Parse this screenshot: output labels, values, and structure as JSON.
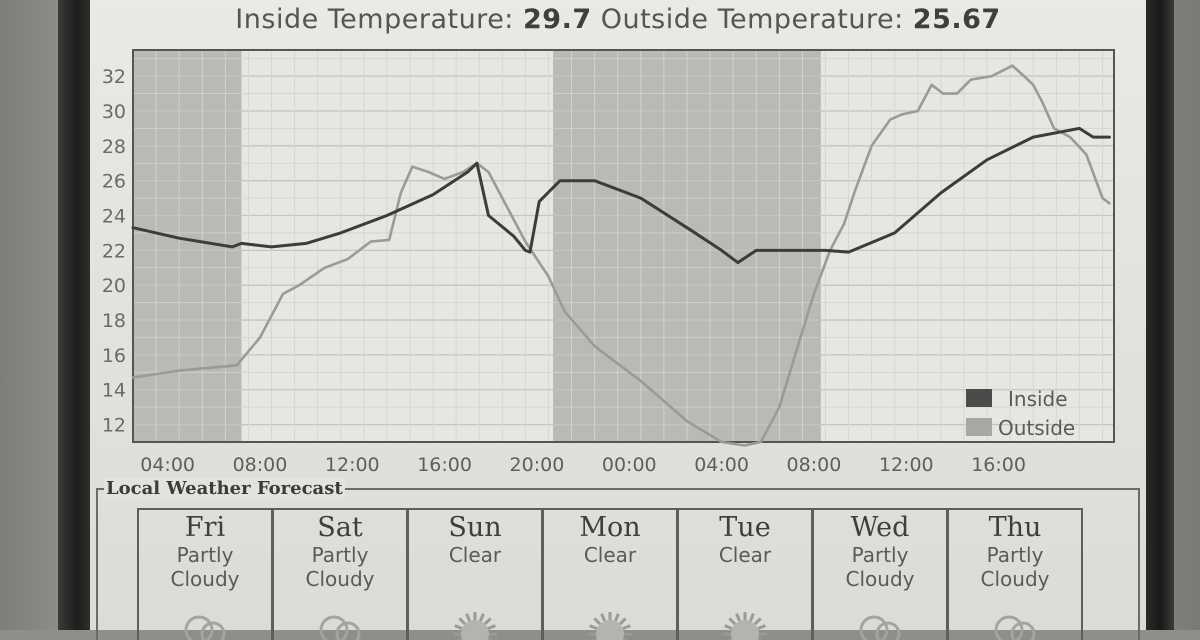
{
  "header": {
    "inside_label": "Inside Temperature:",
    "inside_value": "29.7",
    "outside_label": "Outside Temperature:",
    "outside_value": "25.67"
  },
  "chart_data": {
    "type": "line",
    "title": "",
    "ylim": [
      11,
      33.5
    ],
    "y_ticks": [
      "12",
      "14",
      "16",
      "18",
      "20",
      "22",
      "24",
      "26",
      "28",
      "30",
      "32"
    ],
    "x_ticks": [
      "04:00",
      "08:00",
      "12:00",
      "16:00",
      "20:00",
      "00:00",
      "04:00",
      "08:00",
      "12:00",
      "16:00"
    ],
    "x_range_hours": [
      0,
      42.5
    ],
    "x_tick_hours": [
      1.5,
      5.5,
      9.5,
      13.5,
      17.5,
      21.5,
      25.5,
      29.5,
      33.5,
      37.5
    ],
    "night_bands_hours": [
      [
        0,
        4.7
      ],
      [
        18.2,
        29.8
      ]
    ],
    "grid": true,
    "legend_position": "bottom-right",
    "series": [
      {
        "name": "Inside",
        "color": "#3c3c3a",
        "x": [
          0,
          2,
          4.3,
          4.7,
          6,
          7.5,
          9,
          11,
          13,
          14.5,
          14.9,
          15.4,
          16.5,
          17,
          17.2,
          17.6,
          18.5,
          20,
          22,
          24,
          25.5,
          26.2,
          27,
          28.5,
          30,
          31,
          33,
          35,
          37,
          39,
          41,
          41.6,
          42.3
        ],
        "y": [
          23.3,
          22.7,
          22.2,
          22.4,
          22.2,
          22.4,
          23.0,
          24.0,
          25.2,
          26.5,
          27.0,
          24.0,
          22.8,
          22.0,
          21.9,
          24.8,
          26.0,
          26.0,
          25.0,
          23.3,
          22.0,
          21.3,
          22.0,
          22.0,
          22.0,
          21.9,
          23.0,
          25.3,
          27.2,
          28.5,
          29.0,
          28.5,
          28.5
        ]
      },
      {
        "name": "Outside",
        "color": "#9a9a96",
        "x": [
          0,
          2,
          4.5,
          5.5,
          6.5,
          7.2,
          8.3,
          9.3,
          10.3,
          11.1,
          11.6,
          12.1,
          12.8,
          13.5,
          14.3,
          14.9,
          15.4,
          16,
          17,
          18,
          18.7,
          20,
          22,
          24,
          25.5,
          26.5,
          27.2,
          28,
          28.8,
          29.5,
          30.2,
          30.8,
          31.3,
          32,
          32.8,
          33.3,
          34,
          34.6,
          35.1,
          35.7,
          36.3,
          37.2,
          38.1,
          38.6,
          39,
          39.4,
          39.9,
          40.6,
          41.3,
          42,
          42.3
        ],
        "y": [
          14.7,
          15.1,
          15.4,
          17.0,
          19.5,
          20.0,
          21.0,
          21.5,
          22.5,
          22.6,
          25.3,
          26.8,
          26.5,
          26.1,
          26.5,
          27.0,
          26.5,
          25.0,
          22.5,
          20.5,
          18.5,
          16.5,
          14.5,
          12.2,
          11.0,
          10.8,
          11.0,
          13.0,
          16.5,
          19.5,
          22.0,
          23.5,
          25.5,
          28.0,
          29.5,
          29.8,
          30.0,
          31.5,
          31.0,
          31.0,
          31.8,
          32.0,
          32.6,
          32.0,
          31.5,
          30.5,
          29.0,
          28.5,
          27.5,
          25.0,
          24.7
        ]
      }
    ]
  },
  "legend": {
    "inside": "Inside",
    "outside": "Outside"
  },
  "forecast": {
    "title": "Local Weather Forecast",
    "days": [
      {
        "day": "Fri",
        "line1": "Partly",
        "line2": "Cloudy",
        "icon": "partly-cloudy-icon"
      },
      {
        "day": "Sat",
        "line1": "Partly",
        "line2": "Cloudy",
        "icon": "partly-cloudy-icon"
      },
      {
        "day": "Sun",
        "line1": "Clear",
        "line2": "",
        "icon": "sun-icon"
      },
      {
        "day": "Mon",
        "line1": "Clear",
        "line2": "",
        "icon": "sun-icon"
      },
      {
        "day": "Tue",
        "line1": "Clear",
        "line2": "",
        "icon": "sun-icon"
      },
      {
        "day": "Wed",
        "line1": "Partly",
        "line2": "Cloudy",
        "icon": "partly-cloudy-icon"
      },
      {
        "day": "Thu",
        "line1": "Partly",
        "line2": "Cloudy",
        "icon": "partly-cloudy-icon"
      }
    ]
  }
}
